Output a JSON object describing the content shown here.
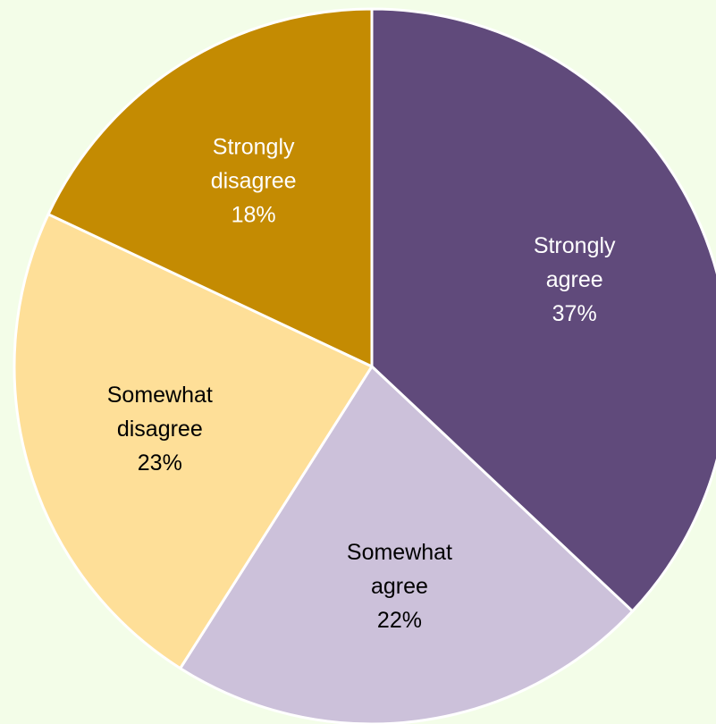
{
  "chart_data": {
    "type": "pie",
    "slices": [
      {
        "category": "Strongly agree",
        "line1": "Strongly",
        "line2": "agree",
        "percent_label": "37%",
        "value": 37,
        "color": "#604a7b",
        "label_color": "#ffffff"
      },
      {
        "category": "Somewhat agree",
        "line1": "Somewhat",
        "line2": "agree",
        "percent_label": "22%",
        "value": 22,
        "color": "#ccc1da",
        "label_color": "#000000"
      },
      {
        "category": "Somewhat disagree",
        "line1": "Somewhat",
        "line2": "disagree",
        "percent_label": "23%",
        "value": 23,
        "color": "#fedf98",
        "label_color": "#000000"
      },
      {
        "category": "Strongly disagree",
        "line1": "Strongly",
        "line2": "disagree",
        "percent_label": "18%",
        "value": 18,
        "color": "#c48b02",
        "label_color": "#ffffff"
      }
    ],
    "start": "12 o'clock",
    "direction": "clockwise",
    "legend": "none"
  }
}
